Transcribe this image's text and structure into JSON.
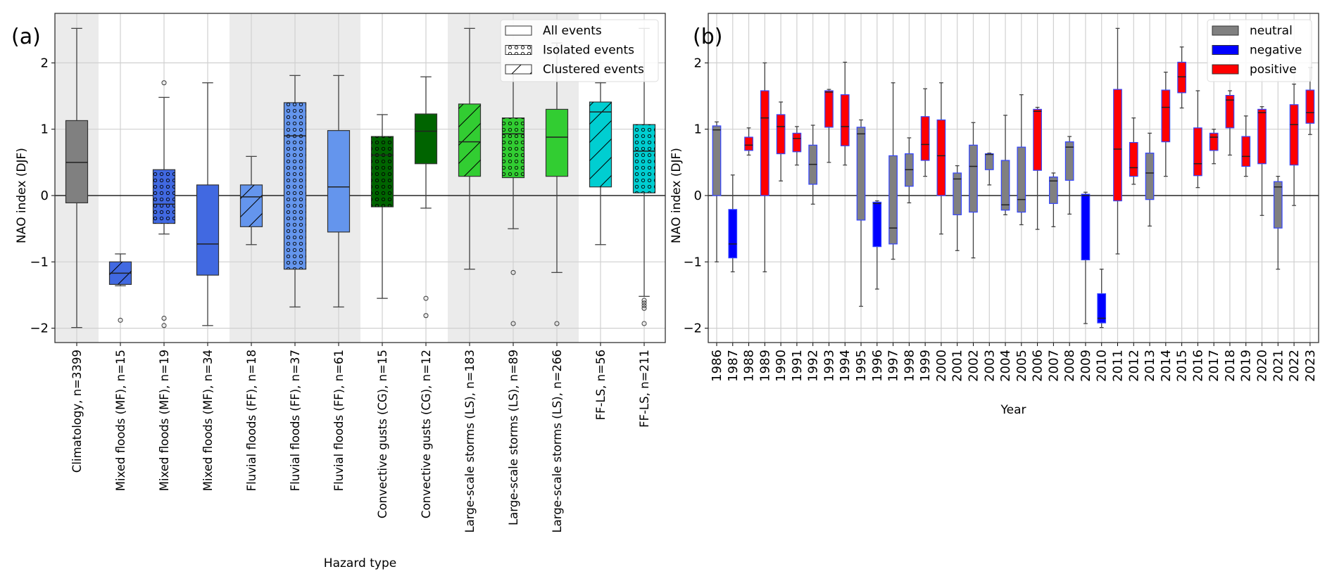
{
  "chart_data": [
    {
      "type": "box",
      "panel_label": "(a)",
      "xlabel": "Hazard type",
      "ylabel": "NAO index (DJF)",
      "ylim": [
        -2.2,
        2.75
      ],
      "yticks": [
        -2,
        -1,
        0,
        1,
        2
      ],
      "grid": true,
      "legend": {
        "placement": "top-right",
        "entries": [
          {
            "label": "All events",
            "hatch": "none"
          },
          {
            "label": "Isolated events",
            "hatch": "dots"
          },
          {
            "label": "Clustered events",
            "hatch": "diagonal"
          }
        ]
      },
      "shaded_groups": [
        "Climatology",
        "Fluvial floods (FF)",
        "Large-scale storms (LS)"
      ],
      "boxes": [
        {
          "label": "Climatology, n=3399",
          "color": "#808080",
          "hatch": "none",
          "shaded": true,
          "whislo": -1.99,
          "q1": -0.11,
          "med": 0.5,
          "q3": 1.13,
          "whishi": 2.52,
          "fliers": []
        },
        {
          "label": "Mixed floods (MF), n=15",
          "color": "#4169e1",
          "hatch": "diagonal",
          "shaded": false,
          "whislo": -1.36,
          "q1": -1.34,
          "med": -1.17,
          "q3": -1.0,
          "whishi": -0.88,
          "fliers": [
            -1.88
          ]
        },
        {
          "label": "Mixed floods (MF), n=19",
          "color": "#4169e1",
          "hatch": "dots",
          "shaded": false,
          "whislo": -0.58,
          "q1": -0.42,
          "med": -0.13,
          "q3": 0.39,
          "whishi": 1.48,
          "fliers": [
            1.7,
            -1.85,
            -1.96
          ]
        },
        {
          "label": "Mixed floods (MF), n=34",
          "color": "#4169e1",
          "hatch": "none",
          "shaded": false,
          "whislo": -1.96,
          "q1": -1.2,
          "med": -0.73,
          "q3": 0.16,
          "whishi": 1.7,
          "fliers": []
        },
        {
          "label": "Fluvial floods (FF), n=18",
          "color": "#6495ed",
          "hatch": "diagonal",
          "shaded": true,
          "whislo": -0.74,
          "q1": -0.47,
          "med": -0.02,
          "q3": 0.16,
          "whishi": 0.59,
          "fliers": []
        },
        {
          "label": "Fluvial floods (FF), n=37",
          "color": "#6495ed",
          "hatch": "dots",
          "shaded": true,
          "whislo": -1.68,
          "q1": -1.11,
          "med": 0.9,
          "q3": 1.4,
          "whishi": 1.81,
          "fliers": []
        },
        {
          "label": "Fluvial floods (FF), n=61",
          "color": "#6495ed",
          "hatch": "none",
          "shaded": true,
          "whislo": -1.68,
          "q1": -0.55,
          "med": 0.13,
          "q3": 0.98,
          "whishi": 1.81,
          "fliers": []
        },
        {
          "label": "Convective gusts (CG), n=15",
          "color": "#006400",
          "hatch": "dots",
          "shaded": false,
          "whislo": -1.55,
          "q1": -0.17,
          "med": 0.61,
          "q3": 0.89,
          "whishi": 1.22,
          "fliers": []
        },
        {
          "label": "Convective gusts (CG), n=12",
          "color": "#006400",
          "hatch": "none",
          "shaded": false,
          "whislo": -0.19,
          "q1": 0.48,
          "med": 0.97,
          "q3": 1.23,
          "whishi": 1.79,
          "fliers": [
            -1.55,
            -1.81
          ]
        },
        {
          "label": "Large-scale storms (LS), n=183",
          "color": "#32cd32",
          "hatch": "diagonal",
          "shaded": true,
          "whislo": -1.11,
          "q1": 0.29,
          "med": 0.81,
          "q3": 1.38,
          "whishi": 2.52,
          "fliers": []
        },
        {
          "label": "Large-scale storms (LS), n=89",
          "color": "#32cd32",
          "hatch": "dots",
          "shaded": true,
          "whislo": -0.5,
          "q1": 0.27,
          "med": 0.93,
          "q3": 1.17,
          "whishi": 1.9,
          "fliers": [
            -1.16,
            -1.93
          ]
        },
        {
          "label": "Large-scale storms (LS), n=266",
          "color": "#32cd32",
          "hatch": "none",
          "shaded": true,
          "whislo": -1.16,
          "q1": 0.29,
          "med": 0.88,
          "q3": 1.3,
          "whishi": 2.3,
          "fliers": [
            -1.93
          ]
        },
        {
          "label": "FF-LS, n=56",
          "color": "#00ced1",
          "hatch": "diagonal",
          "shaded": false,
          "whislo": -0.74,
          "q1": 0.13,
          "med": 1.26,
          "q3": 1.41,
          "whishi": 1.7,
          "fliers": []
        },
        {
          "label": "FF-LS, n=211",
          "color": "#00ced1",
          "hatch": "dots",
          "shaded": false,
          "whislo": -1.52,
          "q1": 0.04,
          "med": 0.67,
          "q3": 1.07,
          "whishi": 2.52,
          "fliers": [
            -1.58,
            -1.62,
            -1.66,
            -1.7,
            -1.93
          ]
        }
      ]
    },
    {
      "type": "box",
      "panel_label": "(b)",
      "xlabel": "Year",
      "ylabel": "NAO index (DJF)",
      "ylim": [
        -2.2,
        2.75
      ],
      "yticks": [
        -2,
        -1,
        0,
        1,
        2
      ],
      "grid": true,
      "legend": {
        "placement": "top-right",
        "entries": [
          {
            "label": "neutral",
            "color": "#808080"
          },
          {
            "label": "negative",
            "color": "#0000ff"
          },
          {
            "label": "positive",
            "color": "#ff0000"
          }
        ]
      },
      "boxes": [
        {
          "label": "1986",
          "phase": "neutral",
          "whislo": -1.0,
          "q1": 0.0,
          "med": 0.99,
          "q3": 1.05,
          "whishi": 1.11
        },
        {
          "label": "1987",
          "phase": "negative",
          "whislo": -1.15,
          "q1": -0.94,
          "med": -0.73,
          "q3": -0.21,
          "whishi": 0.31
        },
        {
          "label": "1988",
          "phase": "positive",
          "whislo": 0.61,
          "q1": 0.68,
          "med": 0.76,
          "q3": 0.88,
          "whishi": 1.02
        },
        {
          "label": "1989",
          "phase": "positive",
          "whislo": -1.15,
          "q1": 0.0,
          "med": 1.17,
          "q3": 1.58,
          "whishi": 2.0
        },
        {
          "label": "1990",
          "phase": "positive",
          "whislo": 0.22,
          "q1": 0.63,
          "med": 1.04,
          "q3": 1.22,
          "whishi": 1.41
        },
        {
          "label": "1991",
          "phase": "positive",
          "whislo": 0.46,
          "q1": 0.66,
          "med": 0.86,
          "q3": 0.94,
          "whishi": 1.04
        },
        {
          "label": "1992",
          "phase": "neutral",
          "whislo": -0.13,
          "q1": 0.17,
          "med": 0.47,
          "q3": 0.76,
          "whishi": 1.06
        },
        {
          "label": "1993",
          "phase": "positive",
          "whislo": 0.5,
          "q1": 1.03,
          "med": 1.56,
          "q3": 1.58,
          "whishi": 1.6
        },
        {
          "label": "1994",
          "phase": "positive",
          "whislo": 0.46,
          "q1": 0.75,
          "med": 1.04,
          "q3": 1.52,
          "whishi": 2.01
        },
        {
          "label": "1995",
          "phase": "neutral",
          "whislo": -1.67,
          "q1": -0.37,
          "med": 0.93,
          "q3": 1.03,
          "whishi": 1.14
        },
        {
          "label": "1996",
          "phase": "negative",
          "whislo": -1.41,
          "q1": -0.77,
          "med": -0.12,
          "q3": -0.1,
          "whishi": -0.08
        },
        {
          "label": "1997",
          "phase": "neutral",
          "whislo": -0.96,
          "q1": -0.73,
          "med": -0.49,
          "q3": 0.6,
          "whishi": 1.7
        },
        {
          "label": "1998",
          "phase": "neutral",
          "whislo": -0.11,
          "q1": 0.14,
          "med": 0.39,
          "q3": 0.63,
          "whishi": 0.87
        },
        {
          "label": "1999",
          "phase": "positive",
          "whislo": 0.29,
          "q1": 0.53,
          "med": 0.77,
          "q3": 1.19,
          "whishi": 1.61
        },
        {
          "label": "2000",
          "phase": "positive",
          "whislo": -0.58,
          "q1": 0.0,
          "med": 0.6,
          "q3": 1.14,
          "whishi": 1.7
        },
        {
          "label": "2001",
          "phase": "neutral",
          "whislo": -0.83,
          "q1": -0.29,
          "med": 0.25,
          "q3": 0.34,
          "whishi": 0.45
        },
        {
          "label": "2002",
          "phase": "neutral",
          "whislo": -0.94,
          "q1": -0.25,
          "med": 0.44,
          "q3": 0.76,
          "whishi": 1.1
        },
        {
          "label": "2003",
          "phase": "neutral",
          "whislo": 0.16,
          "q1": 0.39,
          "med": 0.62,
          "q3": 0.63,
          "whishi": 0.64
        },
        {
          "label": "2004",
          "phase": "neutral",
          "whislo": -0.29,
          "q1": -0.22,
          "med": -0.14,
          "q3": 0.53,
          "whishi": 1.21
        },
        {
          "label": "2005",
          "phase": "neutral",
          "whislo": -0.44,
          "q1": -0.25,
          "med": -0.06,
          "q3": 0.73,
          "whishi": 1.52
        },
        {
          "label": "2006",
          "phase": "positive",
          "whislo": -0.51,
          "q1": 0.38,
          "med": 1.27,
          "q3": 1.3,
          "whishi": 1.33
        },
        {
          "label": "2007",
          "phase": "neutral",
          "whislo": -0.47,
          "q1": -0.12,
          "med": 0.22,
          "q3": 0.28,
          "whishi": 0.34
        },
        {
          "label": "2008",
          "phase": "neutral",
          "whislo": -0.28,
          "q1": 0.23,
          "med": 0.73,
          "q3": 0.81,
          "whishi": 0.89
        },
        {
          "label": "2009",
          "phase": "negative",
          "whislo": -1.93,
          "q1": -0.97,
          "med": 0.0,
          "q3": 0.02,
          "whishi": 0.05
        },
        {
          "label": "2010",
          "phase": "negative",
          "whislo": -1.99,
          "q1": -1.92,
          "med": -1.85,
          "q3": -1.48,
          "whishi": -1.11
        },
        {
          "label": "2011",
          "phase": "positive",
          "whislo": -0.88,
          "q1": -0.08,
          "med": 0.7,
          "q3": 1.6,
          "whishi": 2.52
        },
        {
          "label": "2012",
          "phase": "positive",
          "whislo": 0.17,
          "q1": 0.29,
          "med": 0.42,
          "q3": 0.8,
          "whishi": 1.17
        },
        {
          "label": "2013",
          "phase": "neutral",
          "whislo": -0.46,
          "q1": -0.06,
          "med": 0.34,
          "q3": 0.64,
          "whishi": 0.94
        },
        {
          "label": "2014",
          "phase": "positive",
          "whislo": 0.29,
          "q1": 0.81,
          "med": 1.33,
          "q3": 1.59,
          "whishi": 1.86
        },
        {
          "label": "2015",
          "phase": "positive",
          "whislo": 1.32,
          "q1": 1.55,
          "med": 1.79,
          "q3": 2.01,
          "whishi": 2.24
        },
        {
          "label": "2016",
          "phase": "positive",
          "whislo": 0.12,
          "q1": 0.3,
          "med": 0.48,
          "q3": 1.02,
          "whishi": 1.58
        },
        {
          "label": "2017",
          "phase": "positive",
          "whislo": 0.48,
          "q1": 0.68,
          "med": 0.88,
          "q3": 0.94,
          "whishi": 1.0
        },
        {
          "label": "2018",
          "phase": "positive",
          "whislo": 0.61,
          "q1": 1.02,
          "med": 1.44,
          "q3": 1.51,
          "whishi": 1.58
        },
        {
          "label": "2019",
          "phase": "positive",
          "whislo": 0.29,
          "q1": 0.44,
          "med": 0.59,
          "q3": 0.89,
          "whishi": 1.2
        },
        {
          "label": "2020",
          "phase": "positive",
          "whislo": -0.3,
          "q1": 0.48,
          "med": 1.25,
          "q3": 1.3,
          "whishi": 1.34
        },
        {
          "label": "2021",
          "phase": "neutral",
          "whislo": -1.11,
          "q1": -0.49,
          "med": 0.13,
          "q3": 0.21,
          "whishi": 0.29
        },
        {
          "label": "2022",
          "phase": "positive",
          "whislo": -0.15,
          "q1": 0.46,
          "med": 1.07,
          "q3": 1.37,
          "whishi": 1.68
        },
        {
          "label": "2023",
          "phase": "positive",
          "whislo": 0.92,
          "q1": 1.09,
          "med": 1.25,
          "q3": 1.59,
          "whishi": 1.93
        }
      ]
    }
  ]
}
